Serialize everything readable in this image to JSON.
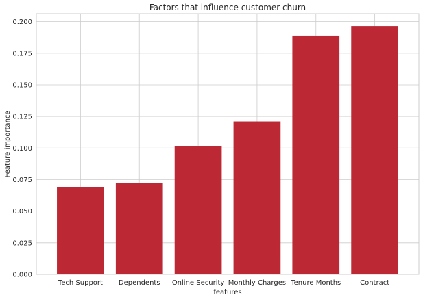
{
  "chart_data": {
    "type": "bar",
    "title": "Factors that influence customer churn",
    "xlabel": "features",
    "ylabel": "Feature importance",
    "categories": [
      "Tech Support",
      "Dependents",
      "Online Security",
      "Monthly Charges",
      "Tenure Months",
      "Contract"
    ],
    "values": [
      0.069,
      0.0725,
      0.1015,
      0.121,
      0.189,
      0.1965
    ],
    "ylim": [
      0,
      0.2063
    ],
    "yticks": [
      "0.000",
      "0.025",
      "0.050",
      "0.075",
      "0.100",
      "0.125",
      "0.150",
      "0.175",
      "0.200"
    ],
    "grid": true,
    "bar_color": "#bc2833"
  }
}
